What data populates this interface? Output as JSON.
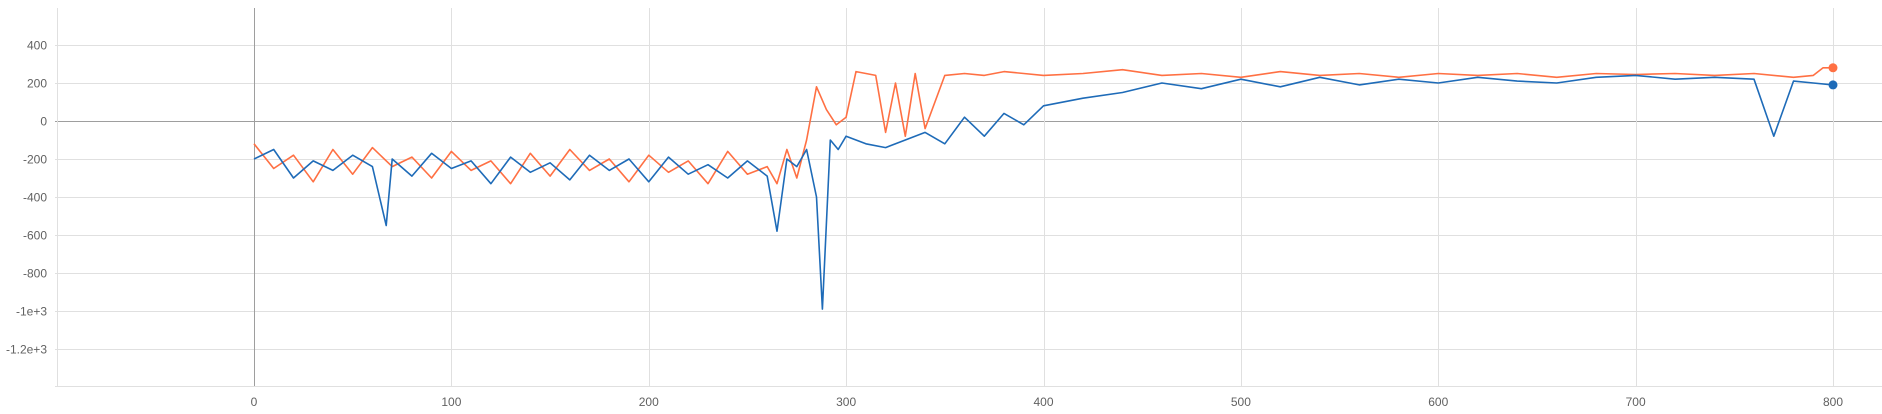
{
  "chart_data": {
    "type": "line",
    "title": "",
    "xlabel": "",
    "ylabel": "",
    "xlim": [
      -100,
      825
    ],
    "ylim": [
      -1400,
      600
    ],
    "grid": true,
    "legend": "none",
    "x_ticks": [
      0,
      100,
      200,
      300,
      400,
      500,
      600,
      700,
      800
    ],
    "x_tick_labels": [
      "0",
      "100",
      "200",
      "300",
      "400",
      "500",
      "600",
      "700",
      "800"
    ],
    "y_ticks": [
      400,
      200,
      0,
      -200,
      -400,
      -600,
      -800,
      -1000,
      -1200
    ],
    "y_tick_labels": [
      "400",
      "200",
      "0",
      "-200",
      "-400",
      "-600",
      "-800",
      "-1e+3",
      "-1.2e+3"
    ],
    "series": [
      {
        "color": "#ff7043",
        "x": [
          0,
          10,
          20,
          30,
          40,
          50,
          60,
          70,
          80,
          90,
          100,
          110,
          120,
          130,
          140,
          150,
          160,
          170,
          180,
          190,
          200,
          210,
          220,
          230,
          240,
          250,
          260,
          265,
          270,
          275,
          280,
          285,
          290,
          295,
          300,
          305,
          310,
          315,
          320,
          325,
          330,
          335,
          340,
          350,
          360,
          370,
          380,
          390,
          400,
          420,
          440,
          460,
          480,
          500,
          520,
          540,
          560,
          580,
          600,
          620,
          640,
          660,
          680,
          700,
          720,
          740,
          760,
          780,
          790,
          795,
          800
        ],
        "y": [
          -120,
          -250,
          -180,
          -320,
          -150,
          -280,
          -140,
          -240,
          -190,
          -300,
          -160,
          -260,
          -210,
          -330,
          -170,
          -290,
          -150,
          -260,
          -200,
          -320,
          -180,
          -270,
          -210,
          -330,
          -160,
          -280,
          -240,
          -330,
          -150,
          -300,
          -100,
          180,
          60,
          -20,
          20,
          260,
          250,
          240,
          -60,
          200,
          -80,
          250,
          -40,
          240,
          250,
          240,
          260,
          250,
          240,
          250,
          270,
          240,
          250,
          230,
          260,
          240,
          250,
          230,
          250,
          240,
          250,
          230,
          250,
          245,
          250,
          240,
          250,
          230,
          240,
          280,
          280
        ]
      },
      {
        "color": "#1e6bb8",
        "x": [
          0,
          10,
          20,
          30,
          40,
          50,
          60,
          67,
          70,
          80,
          90,
          100,
          110,
          120,
          130,
          140,
          150,
          160,
          170,
          180,
          190,
          200,
          210,
          220,
          230,
          240,
          250,
          260,
          265,
          270,
          275,
          280,
          285,
          288,
          292,
          296,
          300,
          310,
          320,
          330,
          340,
          350,
          360,
          370,
          380,
          390,
          400,
          420,
          440,
          460,
          480,
          500,
          520,
          540,
          560,
          580,
          600,
          620,
          640,
          660,
          680,
          700,
          720,
          740,
          760,
          770,
          780,
          790,
          800
        ],
        "y": [
          -200,
          -150,
          -300,
          -210,
          -260,
          -180,
          -240,
          -550,
          -200,
          -290,
          -170,
          -250,
          -210,
          -330,
          -190,
          -270,
          -220,
          -310,
          -180,
          -260,
          -200,
          -320,
          -190,
          -280,
          -230,
          -300,
          -210,
          -290,
          -580,
          -200,
          -240,
          -150,
          -400,
          -990,
          -100,
          -150,
          -80,
          -120,
          -140,
          -100,
          -60,
          -120,
          20,
          -80,
          40,
          -20,
          80,
          120,
          150,
          200,
          170,
          220,
          180,
          230,
          190,
          220,
          200,
          230,
          210,
          200,
          230,
          240,
          220,
          230,
          220,
          -80,
          210,
          200,
          190
        ]
      }
    ]
  }
}
